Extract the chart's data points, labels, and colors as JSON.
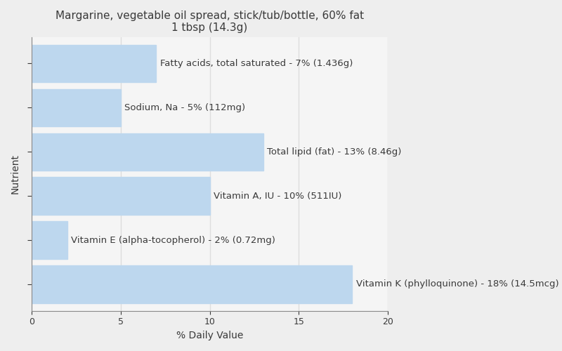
{
  "title": "Margarine, vegetable oil spread, stick/tub/bottle, 60% fat\n1 tbsp (14.3g)",
  "xlabel": "% Daily Value",
  "ylabel": "Nutrient",
  "background_color": "#eeeeee",
  "bar_color": "#bdd7ee",
  "plot_bg_color": "#f5f5f5",
  "xlim": [
    0,
    20
  ],
  "xticks": [
    0,
    5,
    10,
    15,
    20
  ],
  "nutrients": [
    "Fatty acids, total saturated - 7% (1.436g)",
    "Sodium, Na - 5% (112mg)",
    "Total lipid (fat) - 13% (8.46g)",
    "Vitamin A, IU - 10% (511IU)",
    "Vitamin E (alpha-tocopherol) - 2% (0.72mg)",
    "Vitamin K (phylloquinone) - 18% (14.5mcg)"
  ],
  "values": [
    7,
    5,
    13,
    10,
    2,
    18
  ],
  "title_fontsize": 11,
  "label_fontsize": 9.5,
  "axis_label_fontsize": 10,
  "text_color": "#3a3a3a",
  "grid_color": "#dddddd"
}
